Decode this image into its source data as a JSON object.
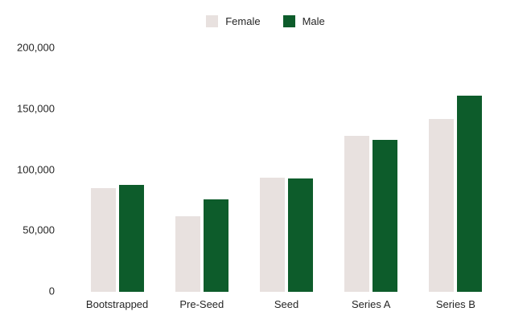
{
  "legend": {
    "items": [
      {
        "label": "Female",
        "color": "#e8e1df"
      },
      {
        "label": "Male",
        "color": "#0d5c2b"
      }
    ]
  },
  "chart_data": {
    "type": "bar",
    "title": "",
    "categories": [
      "Bootstrapped",
      "Pre-Seed",
      "Seed",
      "Series A",
      "Series B"
    ],
    "series": [
      {
        "name": "Female",
        "color": "#e8e1df",
        "values": [
          85000,
          62000,
          94000,
          128000,
          142000
        ]
      },
      {
        "name": "Male",
        "color": "#0d5c2b",
        "values": [
          88000,
          76000,
          93000,
          125000,
          161000
        ]
      }
    ],
    "xlabel": "",
    "ylabel": "",
    "ylim": [
      0,
      200000
    ],
    "yticks": [
      0,
      50000,
      100000,
      150000,
      200000
    ],
    "ytick_labels": [
      "0",
      "50,000",
      "100,000",
      "150,000",
      "200,000"
    ],
    "grid": false,
    "legend_position": "top-center",
    "background": "#ffffff",
    "text_color": "#262626"
  }
}
